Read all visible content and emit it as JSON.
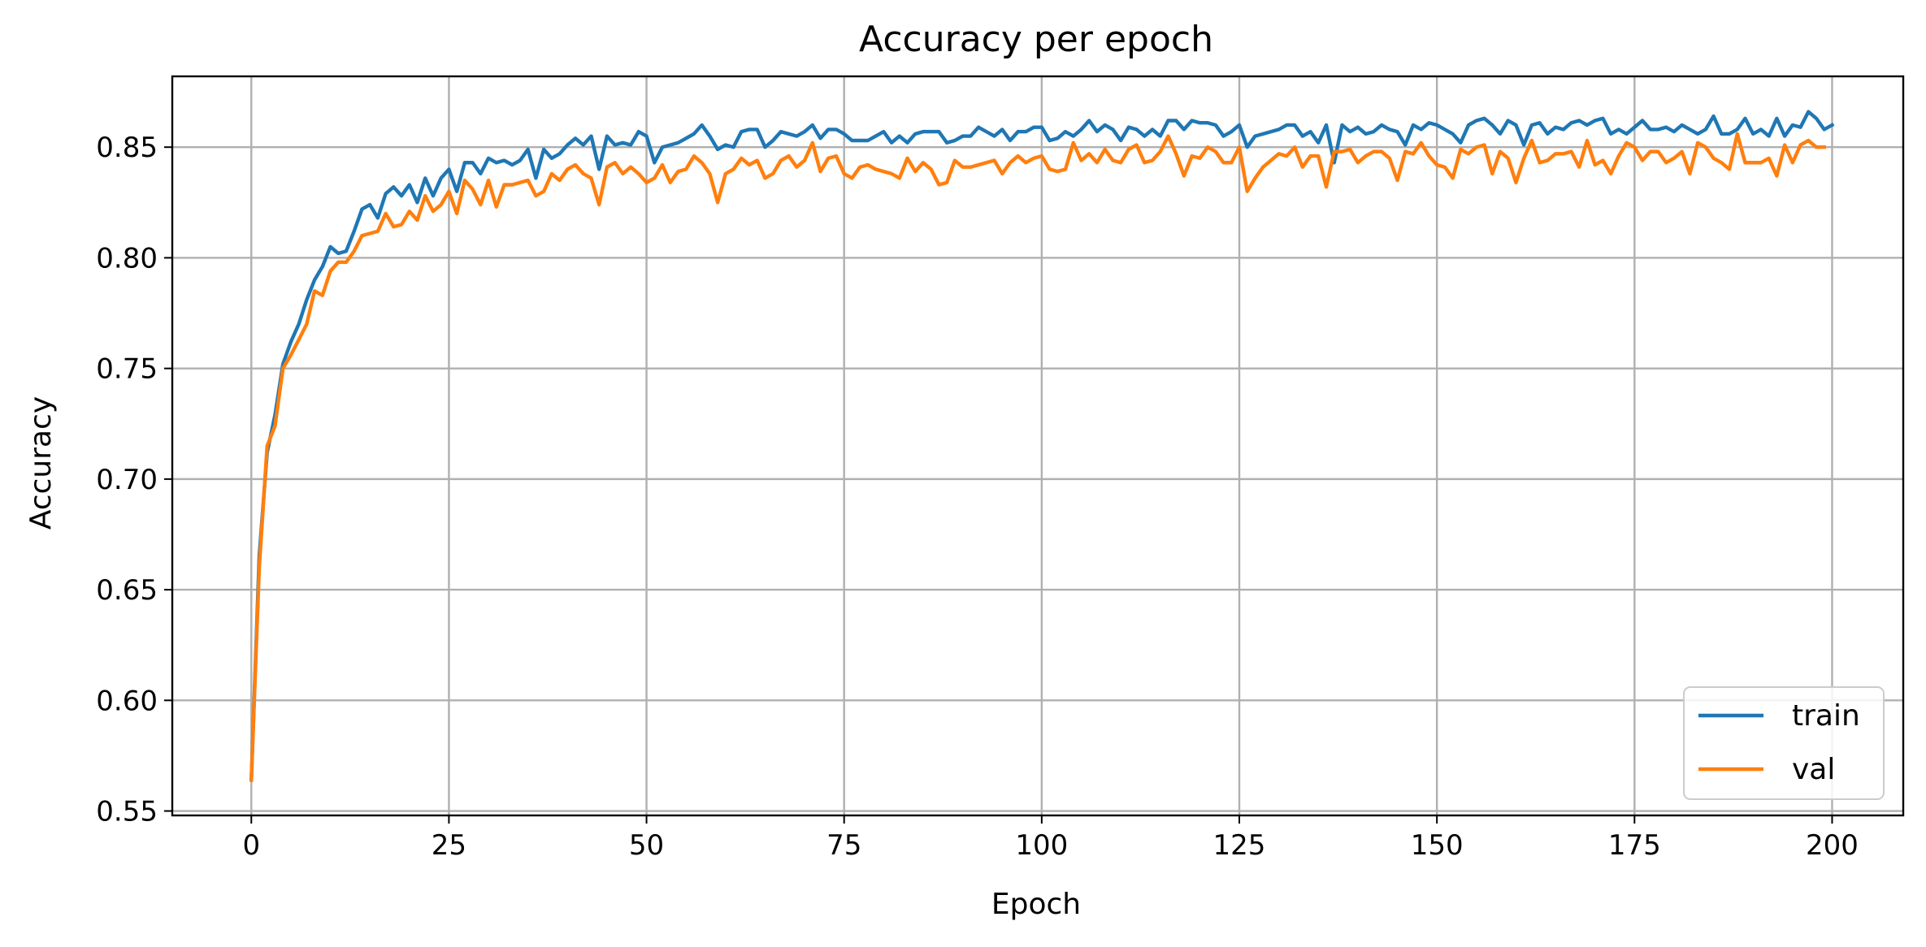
{
  "chart_data": {
    "type": "line",
    "title": "Accuracy per epoch",
    "xlabel": "Epoch",
    "ylabel": "Accuracy",
    "xlim": [
      -10,
      209
    ],
    "ylim": [
      0.548,
      0.882
    ],
    "xticks": [
      0,
      25,
      50,
      75,
      100,
      125,
      150,
      175,
      200
    ],
    "yticks": [
      0.55,
      0.6,
      0.65,
      0.7,
      0.75,
      0.8,
      0.85
    ],
    "xtick_labels": [
      "0",
      "25",
      "50",
      "75",
      "100",
      "125",
      "150",
      "175",
      "200"
    ],
    "ytick_labels": [
      "0.55",
      "0.60",
      "0.65",
      "0.70",
      "0.75",
      "0.80",
      "0.85"
    ],
    "grid": true,
    "legend_position": "bottom-right",
    "colors": {
      "train": "#1f77b4",
      "val": "#ff7f0e"
    },
    "series": [
      {
        "name": "train",
        "values": [
          0.564,
          0.665,
          0.712,
          0.729,
          0.752,
          0.762,
          0.77,
          0.781,
          0.79,
          0.796,
          0.805,
          0.802,
          0.803,
          0.812,
          0.822,
          0.824,
          0.818,
          0.829,
          0.832,
          0.828,
          0.833,
          0.825,
          0.836,
          0.828,
          0.836,
          0.84,
          0.83,
          0.843,
          0.843,
          0.838,
          0.845,
          0.843,
          0.844,
          0.842,
          0.844,
          0.849,
          0.836,
          0.849,
          0.845,
          0.847,
          0.851,
          0.854,
          0.851,
          0.855,
          0.84,
          0.855,
          0.851,
          0.852,
          0.851,
          0.857,
          0.855,
          0.843,
          0.85,
          0.851,
          0.852,
          0.854,
          0.856,
          0.86,
          0.855,
          0.849,
          0.851,
          0.85,
          0.857,
          0.858,
          0.858,
          0.85,
          0.853,
          0.857,
          0.856,
          0.855,
          0.857,
          0.86,
          0.854,
          0.858,
          0.858,
          0.856,
          0.853,
          0.853,
          0.853,
          0.855,
          0.857,
          0.852,
          0.855,
          0.852,
          0.856,
          0.857,
          0.857,
          0.857,
          0.852,
          0.853,
          0.855,
          0.855,
          0.859,
          0.857,
          0.855,
          0.858,
          0.853,
          0.857,
          0.857,
          0.859,
          0.859,
          0.853,
          0.854,
          0.857,
          0.855,
          0.858,
          0.862,
          0.857,
          0.86,
          0.858,
          0.853,
          0.859,
          0.858,
          0.855,
          0.858,
          0.855,
          0.862,
          0.862,
          0.858,
          0.862,
          0.861,
          0.861,
          0.86,
          0.855,
          0.857,
          0.86,
          0.85,
          0.855,
          0.856,
          0.857,
          0.858,
          0.86,
          0.86,
          0.855,
          0.857,
          0.852,
          0.86,
          0.843,
          0.86,
          0.857,
          0.859,
          0.856,
          0.857,
          0.86,
          0.858,
          0.857,
          0.851,
          0.86,
          0.858,
          0.861,
          0.86,
          0.858,
          0.856,
          0.852,
          0.86,
          0.862,
          0.863,
          0.86,
          0.856,
          0.862,
          0.86,
          0.851,
          0.86,
          0.861,
          0.856,
          0.859,
          0.858,
          0.861,
          0.862,
          0.86,
          0.862,
          0.863,
          0.856,
          0.858,
          0.856,
          0.859,
          0.862,
          0.858,
          0.858,
          0.859,
          0.857,
          0.86,
          0.858,
          0.856,
          0.858,
          0.864,
          0.856,
          0.856,
          0.858,
          0.863,
          0.856,
          0.858,
          0.855,
          0.863,
          0.855,
          0.86,
          0.859,
          0.866,
          0.863,
          0.858,
          0.86
        ]
      },
      {
        "name": "val",
        "values": [
          0.564,
          0.66,
          0.715,
          0.724,
          0.75,
          0.756,
          0.763,
          0.77,
          0.785,
          0.783,
          0.794,
          0.798,
          0.798,
          0.803,
          0.81,
          0.811,
          0.812,
          0.82,
          0.814,
          0.815,
          0.821,
          0.817,
          0.828,
          0.821,
          0.824,
          0.83,
          0.82,
          0.835,
          0.831,
          0.824,
          0.835,
          0.823,
          0.833,
          0.833,
          0.834,
          0.835,
          0.828,
          0.83,
          0.838,
          0.835,
          0.84,
          0.842,
          0.838,
          0.836,
          0.824,
          0.841,
          0.843,
          0.838,
          0.841,
          0.838,
          0.834,
          0.836,
          0.842,
          0.834,
          0.839,
          0.84,
          0.846,
          0.843,
          0.838,
          0.825,
          0.838,
          0.84,
          0.845,
          0.842,
          0.844,
          0.836,
          0.838,
          0.844,
          0.846,
          0.841,
          0.844,
          0.852,
          0.839,
          0.845,
          0.846,
          0.838,
          0.836,
          0.841,
          0.842,
          0.84,
          0.839,
          0.838,
          0.836,
          0.845,
          0.839,
          0.843,
          0.84,
          0.833,
          0.834,
          0.844,
          0.841,
          0.841,
          0.842,
          0.843,
          0.844,
          0.838,
          0.843,
          0.846,
          0.843,
          0.845,
          0.846,
          0.84,
          0.839,
          0.84,
          0.852,
          0.844,
          0.847,
          0.843,
          0.849,
          0.844,
          0.843,
          0.849,
          0.851,
          0.843,
          0.844,
          0.848,
          0.855,
          0.847,
          0.837,
          0.846,
          0.845,
          0.85,
          0.848,
          0.843,
          0.843,
          0.85,
          0.83,
          0.836,
          0.841,
          0.844,
          0.847,
          0.846,
          0.85,
          0.841,
          0.846,
          0.846,
          0.832,
          0.848,
          0.848,
          0.849,
          0.843,
          0.846,
          0.848,
          0.848,
          0.845,
          0.835,
          0.848,
          0.847,
          0.852,
          0.846,
          0.842,
          0.841,
          0.836,
          0.849,
          0.847,
          0.85,
          0.851,
          0.838,
          0.848,
          0.845,
          0.834,
          0.845,
          0.853,
          0.843,
          0.844,
          0.847,
          0.847,
          0.848,
          0.841,
          0.853,
          0.842,
          0.844,
          0.838,
          0.846,
          0.852,
          0.85,
          0.844,
          0.848,
          0.848,
          0.843,
          0.845,
          0.848,
          0.838,
          0.852,
          0.85,
          0.845,
          0.843,
          0.84,
          0.856,
          0.843,
          0.843,
          0.843,
          0.845,
          0.837,
          0.851,
          0.843,
          0.851,
          0.853,
          0.85,
          0.85
        ]
      }
    ]
  }
}
